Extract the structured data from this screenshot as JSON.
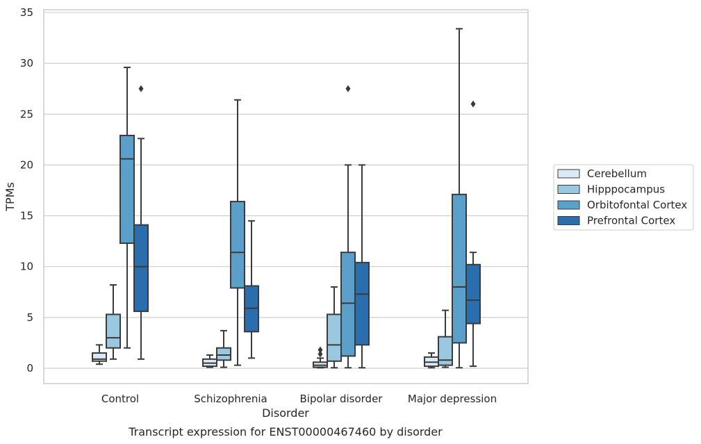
{
  "chart_data": {
    "type": "boxplot",
    "xlabel": "Disorder",
    "ylabel": "TPMs",
    "caption": "Transcript expression for ENST00000467460 by disorder",
    "ylim": [
      -1.6,
      35
    ],
    "yticks": [
      0,
      5,
      10,
      15,
      20,
      25,
      30,
      35
    ],
    "grid": "horizontal",
    "legend_position": "right",
    "categories": [
      "Control",
      "Schizophrenia",
      "Bipolar disorder",
      "Major depression"
    ],
    "series": [
      {
        "name": "Cerebellum",
        "color": "#dbe9f6",
        "boxes": [
          {
            "whislo": 0.4,
            "q1": 0.7,
            "med": 0.9,
            "q3": 1.5,
            "whishi": 2.3,
            "fliers": []
          },
          {
            "whislo": 0.1,
            "q1": 0.2,
            "med": 0.5,
            "q3": 0.9,
            "whishi": 1.3,
            "fliers": []
          },
          {
            "whislo": 0.05,
            "q1": 0.1,
            "med": 0.3,
            "q3": 0.6,
            "whishi": 1.0,
            "fliers": [
              1.4,
              1.8
            ]
          },
          {
            "whislo": 0.05,
            "q1": 0.2,
            "med": 0.6,
            "q3": 1.1,
            "whishi": 1.5,
            "fliers": []
          }
        ]
      },
      {
        "name": "Hipppocampus",
        "color": "#9ac8e0",
        "boxes": [
          {
            "whislo": 0.9,
            "q1": 2.0,
            "med": 3.0,
            "q3": 5.3,
            "whishi": 8.2,
            "fliers": []
          },
          {
            "whislo": 0.1,
            "q1": 0.8,
            "med": 1.3,
            "q3": 2.0,
            "whishi": 3.7,
            "fliers": []
          },
          {
            "whislo": 0.05,
            "q1": 0.7,
            "med": 2.3,
            "q3": 5.3,
            "whishi": 8.0,
            "fliers": []
          },
          {
            "whislo": 0.1,
            "q1": 0.3,
            "med": 0.8,
            "q3": 3.1,
            "whishi": 5.7,
            "fliers": []
          }
        ]
      },
      {
        "name": "Orbitofontal Cortex",
        "color": "#5b9fcb",
        "boxes": [
          {
            "whislo": 2.0,
            "q1": 12.3,
            "med": 20.6,
            "q3": 22.9,
            "whishi": 29.6,
            "fliers": []
          },
          {
            "whislo": 0.3,
            "q1": 7.9,
            "med": 11.4,
            "q3": 16.4,
            "whishi": 26.4,
            "fliers": []
          },
          {
            "whislo": 0.05,
            "q1": 1.2,
            "med": 6.4,
            "q3": 11.4,
            "whishi": 20.0,
            "fliers": [
              27.5
            ]
          },
          {
            "whislo": 0.05,
            "q1": 2.5,
            "med": 8.0,
            "q3": 17.1,
            "whishi": 33.4,
            "fliers": []
          }
        ]
      },
      {
        "name": "Prefrontal Cortex",
        "color": "#2b6ead",
        "boxes": [
          {
            "whislo": 0.9,
            "q1": 5.6,
            "med": 10.0,
            "q3": 14.1,
            "whishi": 22.6,
            "fliers": [
              27.5
            ]
          },
          {
            "whislo": 1.0,
            "q1": 3.6,
            "med": 5.9,
            "q3": 8.1,
            "whishi": 14.5,
            "fliers": []
          },
          {
            "whislo": 0.05,
            "q1": 2.3,
            "med": 7.3,
            "q3": 10.4,
            "whishi": 20.0,
            "fliers": []
          },
          {
            "whislo": 0.2,
            "q1": 4.4,
            "med": 6.7,
            "q3": 10.2,
            "whishi": 11.4,
            "fliers": [
              26.0
            ]
          }
        ]
      }
    ]
  }
}
